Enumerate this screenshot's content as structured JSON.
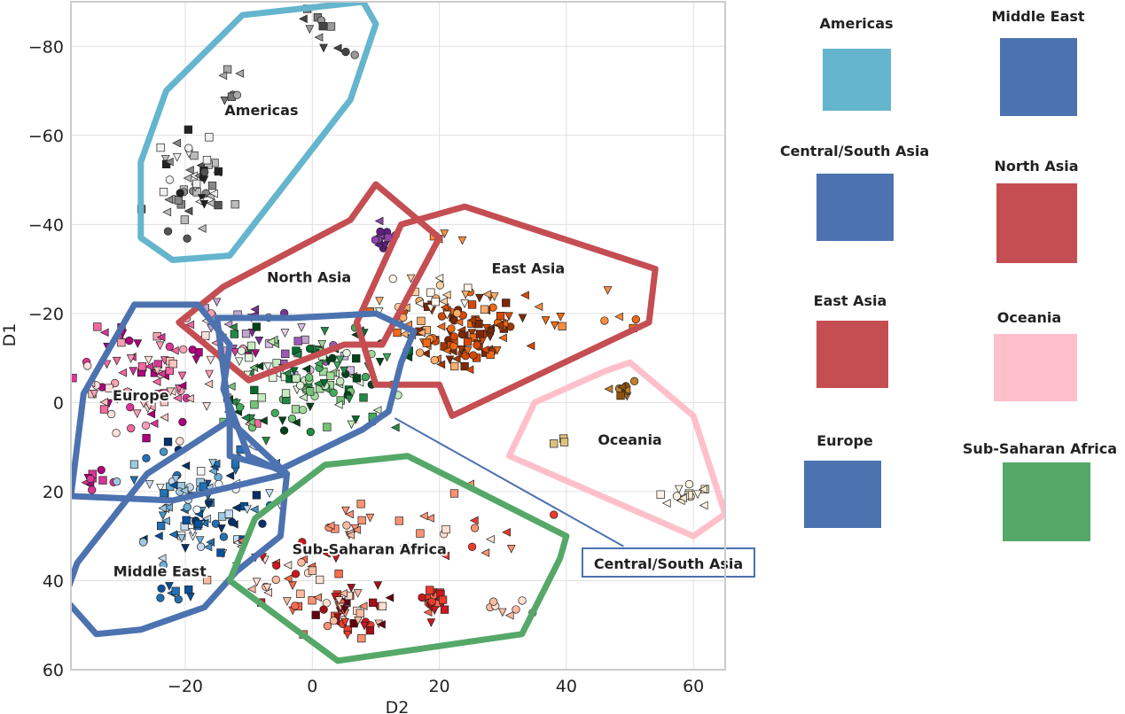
{
  "chart_data": {
    "type": "scatter",
    "xlabel": "D2",
    "ylabel": "D1",
    "xlim": [
      -38,
      65
    ],
    "ylim": [
      -90,
      60
    ],
    "y_inverted": true,
    "grid": true,
    "x_ticks": [
      -20,
      0,
      20,
      40,
      60
    ],
    "y_ticks": [
      -80,
      -60,
      -40,
      -20,
      0,
      20,
      40,
      60
    ],
    "x_tick_labels": [
      "−20",
      "0",
      "20",
      "40",
      "60"
    ],
    "y_tick_labels": [
      "−80",
      "−60",
      "−40",
      "−20",
      "0",
      "20",
      "40",
      "60"
    ],
    "regions": [
      {
        "name": "Americas",
        "color": "#64b5cd",
        "label_at": [
          -8,
          -64.5
        ],
        "hull": [
          [
            -22,
            -32
          ],
          [
            -27,
            -37
          ],
          [
            -27,
            -54
          ],
          [
            -23,
            -70
          ],
          [
            -11,
            -87
          ],
          [
            8,
            -90
          ],
          [
            10,
            -85
          ],
          [
            6,
            -68
          ],
          [
            -13,
            -33
          ]
        ]
      },
      {
        "name": "North Asia",
        "color": "#c44e52",
        "label_at": [
          -0.5,
          -27
        ],
        "hull": [
          [
            -10,
            -5
          ],
          [
            -21,
            -18
          ],
          [
            -14,
            -26
          ],
          [
            6,
            -41
          ],
          [
            10,
            -49
          ],
          [
            20,
            -37
          ],
          [
            11,
            -13
          ],
          [
            5,
            -13
          ]
        ]
      },
      {
        "name": "East Asia",
        "color": "#c44e52",
        "label_at": [
          34,
          -29
        ],
        "hull": [
          [
            20,
            -4
          ],
          [
            10,
            -4
          ],
          [
            7,
            -18
          ],
          [
            14,
            -40
          ],
          [
            24,
            -44
          ],
          [
            54,
            -30
          ],
          [
            53,
            -18
          ],
          [
            22,
            3
          ]
        ]
      },
      {
        "name": "Oceania",
        "color": "#ffc0cb",
        "label_at": [
          50,
          9.5
        ],
        "hull": [
          [
            31,
            12
          ],
          [
            35,
            0
          ],
          [
            46,
            -7
          ],
          [
            50,
            -9
          ],
          [
            60,
            3
          ],
          [
            65,
            25
          ],
          [
            60,
            30
          ]
        ]
      },
      {
        "name": "Europe",
        "color": "#4c72b0",
        "label_at": [
          -27,
          -0.5
        ],
        "hull": [
          [
            -38,
            21
          ],
          [
            -36,
            -2
          ],
          [
            -28,
            -22
          ],
          [
            -18,
            -22
          ],
          [
            -13,
            -13
          ],
          [
            -14,
            -3
          ],
          [
            -10,
            12
          ],
          [
            -4,
            16
          ],
          [
            -22,
            22
          ]
        ]
      },
      {
        "name": "Middle East",
        "color": "#4c72b0",
        "label_at": [
          -24,
          39
        ],
        "hull": [
          [
            -39,
            44
          ],
          [
            -34,
            52
          ],
          [
            -27,
            51
          ],
          [
            -17,
            46
          ],
          [
            -12,
            38
          ],
          [
            -5,
            30
          ],
          [
            -4,
            16
          ],
          [
            -13,
            4
          ],
          [
            -26,
            16
          ],
          [
            -37,
            36
          ]
        ]
      },
      {
        "name": "Central/South Asia",
        "color": "#4c72b0",
        "hull": [
          [
            -13,
            4
          ],
          [
            -15,
            -19
          ],
          [
            -3,
            -19
          ],
          [
            10,
            -20
          ],
          [
            16,
            -16
          ],
          [
            14,
            -9
          ],
          [
            12,
            2
          ],
          [
            8,
            6
          ],
          [
            -5,
            15
          ],
          [
            -13,
            12
          ]
        ]
      },
      {
        "name": "Sub-Saharan Africa",
        "color": "#55a868",
        "label_at": [
          9,
          34
        ],
        "hull": [
          [
            -13,
            40
          ],
          [
            -9,
            26
          ],
          [
            2,
            14
          ],
          [
            15,
            12
          ],
          [
            40,
            30
          ],
          [
            39,
            35
          ],
          [
            33,
            52
          ],
          [
            4,
            58
          ]
        ]
      }
    ],
    "callout": {
      "text": "Central/South Asia",
      "from": [
        13,
        3.5
      ],
      "to": [
        49,
        32.3
      ]
    },
    "legend": [
      {
        "label": "Americas",
        "color": "#64b5cd"
      },
      {
        "label": "Middle East",
        "color": "#4c72b0"
      },
      {
        "label": "Central/South Asia",
        "color": "#4c72b0"
      },
      {
        "label": "North Asia",
        "color": "#c44e52"
      },
      {
        "label": "East Asia",
        "color": "#c44e52"
      },
      {
        "label": "Oceania",
        "color": "#ffc0cb"
      },
      {
        "label": "Europe",
        "color": "#4c72b0"
      },
      {
        "label": "Sub-Saharan Africa",
        "color": "#55a868"
      }
    ],
    "clusters": [
      {
        "region": "Americas",
        "center": [
          -19,
          -49
        ],
        "spread": [
          3,
          6
        ],
        "n": 55,
        "colors": [
          "#222222",
          "#555555",
          "#888888",
          "#bbbbbb",
          "#f0f0f0"
        ]
      },
      {
        "region": "Americas",
        "center": [
          -13,
          -74
        ],
        "spread": [
          1,
          3
        ],
        "n": 7,
        "colors": [
          "#777777",
          "#aaaaaa"
        ]
      },
      {
        "region": "Americas",
        "center": [
          2,
          -84
        ],
        "spread": [
          2,
          4
        ],
        "n": 12,
        "colors": [
          "#444444",
          "#777777",
          "#999999"
        ]
      },
      {
        "region": "North Asia",
        "center": [
          -11,
          -16
        ],
        "spread": [
          4,
          3
        ],
        "n": 18,
        "colors": [
          "#7b3294",
          "#c2a5cf",
          "#e7d4e8"
        ]
      },
      {
        "region": "North Asia",
        "center": [
          11,
          -38
        ],
        "spread": [
          2,
          2
        ],
        "n": 12,
        "colors": [
          "#5e1f80",
          "#8e44ad"
        ]
      },
      {
        "region": "North Asia",
        "center": [
          2,
          -12
        ],
        "spread": [
          5,
          3
        ],
        "n": 15,
        "colors": [
          "#9b59b6",
          "#d7bde2"
        ]
      },
      {
        "region": "East Asia",
        "center": [
          25,
          -16
        ],
        "spread": [
          4,
          4
        ],
        "n": 95,
        "colors": [
          "#7f2704",
          "#a63603",
          "#d94801",
          "#f16913"
        ]
      },
      {
        "region": "East Asia",
        "center": [
          20,
          -24
        ],
        "spread": [
          4,
          3
        ],
        "n": 22,
        "colors": [
          "#fdae6b",
          "#fdd0a2",
          "#fff5eb"
        ]
      },
      {
        "region": "East Asia",
        "center": [
          15,
          -16
        ],
        "spread": [
          3,
          5
        ],
        "n": 20,
        "colors": [
          "#f16913",
          "#fd8d3c",
          "#fdae6b"
        ]
      },
      {
        "region": "East Asia",
        "center": [
          40,
          -20
        ],
        "spread": [
          6,
          3
        ],
        "n": 10,
        "colors": [
          "#f16913",
          "#fd8d3c"
        ]
      },
      {
        "region": "East Asia",
        "center": [
          21,
          -37
        ],
        "spread": [
          2,
          1
        ],
        "n": 5,
        "colors": [
          "#fd8d3c"
        ]
      },
      {
        "region": "Oceania",
        "center": [
          48,
          -3
        ],
        "spread": [
          1,
          1
        ],
        "n": 10,
        "colors": [
          "#8c510a",
          "#bf812d"
        ]
      },
      {
        "region": "Oceania",
        "center": [
          59,
          22
        ],
        "spread": [
          2,
          2
        ],
        "n": 15,
        "colors": [
          "#fdebd0",
          "#fff5e6"
        ]
      },
      {
        "region": "Oceania",
        "center": [
          37,
          8
        ],
        "spread": [
          3,
          1
        ],
        "n": 3,
        "colors": [
          "#dfc27d"
        ]
      },
      {
        "region": "Europe",
        "center": [
          -25,
          -5
        ],
        "spread": [
          7,
          6
        ],
        "n": 110,
        "colors": [
          "#ae017e",
          "#dd3497",
          "#f768a1",
          "#fa9fb5",
          "#fcc5c0",
          "#fde0dd"
        ]
      },
      {
        "region": "Europe",
        "center": [
          -34,
          17
        ],
        "spread": [
          2,
          1
        ],
        "n": 12,
        "colors": [
          "#ae017e",
          "#dd3497"
        ]
      },
      {
        "region": "Central/South Asia",
        "center": [
          0,
          -5
        ],
        "spread": [
          7,
          6
        ],
        "n": 140,
        "colors": [
          "#00441b",
          "#006d2c",
          "#238b45",
          "#41ab5d",
          "#74c476",
          "#a1d99b",
          "#c7e9c0",
          "#e5f5e0"
        ]
      },
      {
        "region": "Middle East",
        "center": [
          -17,
          23
        ],
        "spread": [
          5,
          6
        ],
        "n": 110,
        "colors": [
          "#08306b",
          "#08519c",
          "#2171b5",
          "#4292c6",
          "#6baed6",
          "#9ecae1",
          "#c6dbef",
          "#f7fbff"
        ]
      },
      {
        "region": "Middle East",
        "center": [
          -22,
          43
        ],
        "spread": [
          2,
          1
        ],
        "n": 8,
        "colors": [
          "#08519c",
          "#2171b5"
        ]
      },
      {
        "region": "Sub-Saharan Africa",
        "center": [
          6,
          47
        ],
        "spread": [
          3,
          3
        ],
        "n": 55,
        "colors": [
          "#67000d",
          "#a50f15",
          "#cb181d",
          "#ef3b2c",
          "#fb6a4a",
          "#fc9272",
          "#fcbba1",
          "#fee0d2"
        ]
      },
      {
        "region": "Sub-Saharan Africa",
        "center": [
          19,
          44
        ],
        "spread": [
          1,
          2
        ],
        "n": 22,
        "colors": [
          "#ef3b2c",
          "#fb6a4a",
          "#cb181d"
        ]
      },
      {
        "region": "Sub-Saharan Africa",
        "center": [
          -4,
          38
        ],
        "spread": [
          5,
          4
        ],
        "n": 35,
        "colors": [
          "#cb181d",
          "#fb6a4a",
          "#fcbba1",
          "#fee0d2"
        ]
      },
      {
        "region": "Sub-Saharan Africa",
        "center": [
          22,
          27
        ],
        "spread": [
          9,
          4
        ],
        "n": 18,
        "colors": [
          "#fc9272",
          "#ef3b2c",
          "#fee0d2"
        ]
      },
      {
        "region": "Sub-Saharan Africa",
        "center": [
          6,
          27
        ],
        "spread": [
          2,
          3
        ],
        "n": 14,
        "colors": [
          "#fc9272",
          "#fcbba1"
        ]
      },
      {
        "region": "Sub-Saharan Africa",
        "center": [
          31,
          46
        ],
        "spread": [
          2,
          2
        ],
        "n": 8,
        "colors": [
          "#fee0d2",
          "#fcbba1"
        ]
      }
    ]
  }
}
